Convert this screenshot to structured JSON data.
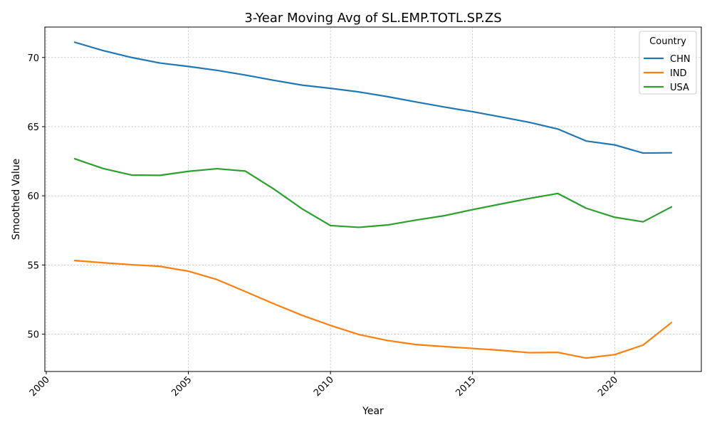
{
  "chart_data": {
    "type": "line",
    "title": "3-Year Moving Avg of SL.EMP.TOTL.SP.ZS",
    "xlabel": "Year",
    "ylabel": "Smoothed Value",
    "xlim": [
      1999.95,
      2023.05
    ],
    "ylim": [
      47.3,
      72.2
    ],
    "x_ticks": [
      2000,
      2005,
      2010,
      2015,
      2020
    ],
    "y_ticks": [
      50,
      55,
      60,
      65,
      70
    ],
    "grid": true,
    "legend_title": "Country",
    "legend_position": "top-right",
    "x": [
      2001,
      2002,
      2003,
      2004,
      2005,
      2006,
      2007,
      2008,
      2009,
      2010,
      2011,
      2012,
      2013,
      2014,
      2015,
      2016,
      2017,
      2018,
      2019,
      2020,
      2021,
      2022
    ],
    "series": [
      {
        "name": "CHN",
        "color": "#1f77b4",
        "values": [
          71.1,
          70.5,
          70.0,
          69.6,
          69.35,
          69.07,
          68.73,
          68.35,
          68.0,
          67.77,
          67.51,
          67.17,
          66.79,
          66.42,
          66.08,
          65.7,
          65.31,
          64.83,
          63.96,
          63.68,
          63.09,
          63.11
        ]
      },
      {
        "name": "IND",
        "color": "#ff7f0e",
        "values": [
          55.32,
          55.16,
          55.02,
          54.9,
          54.55,
          53.95,
          53.08,
          52.2,
          51.36,
          50.63,
          49.97,
          49.54,
          49.25,
          49.1,
          48.97,
          48.83,
          48.66,
          48.68,
          48.27,
          48.52,
          49.21,
          50.84
        ]
      },
      {
        "name": "USA",
        "color": "#2ca02c",
        "values": [
          62.68,
          61.97,
          61.5,
          61.48,
          61.77,
          61.96,
          61.79,
          60.5,
          59.06,
          57.85,
          57.72,
          57.89,
          58.24,
          58.56,
          59.0,
          59.41,
          59.81,
          60.17,
          59.1,
          58.45,
          58.12,
          59.2
        ]
      }
    ]
  }
}
